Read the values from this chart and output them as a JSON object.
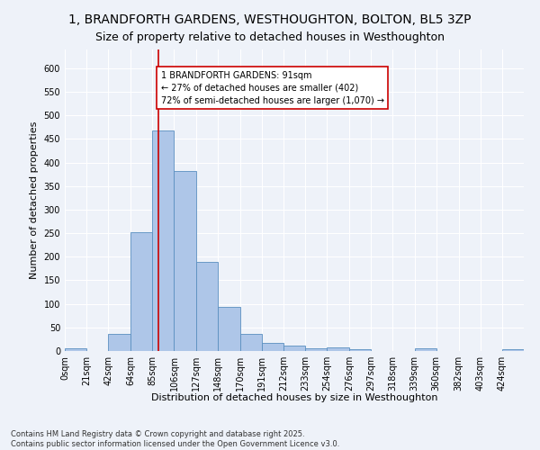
{
  "title1": "1, BRANDFORTH GARDENS, WESTHOUGHTON, BOLTON, BL5 3ZP",
  "title2": "Size of property relative to detached houses in Westhoughton",
  "xlabel": "Distribution of detached houses by size in Westhoughton",
  "ylabel": "Number of detached properties",
  "bin_labels": [
    "0sqm",
    "21sqm",
    "42sqm",
    "64sqm",
    "85sqm",
    "106sqm",
    "127sqm",
    "148sqm",
    "170sqm",
    "191sqm",
    "212sqm",
    "233sqm",
    "254sqm",
    "276sqm",
    "297sqm",
    "318sqm",
    "339sqm",
    "360sqm",
    "382sqm",
    "403sqm",
    "424sqm"
  ],
  "bin_edges": [
    0,
    21,
    42,
    64,
    85,
    106,
    127,
    148,
    170,
    191,
    212,
    233,
    254,
    276,
    297,
    318,
    339,
    360,
    382,
    403,
    424,
    445
  ],
  "bar_values": [
    5,
    0,
    37,
    252,
    468,
    383,
    190,
    93,
    37,
    18,
    12,
    6,
    7,
    4,
    0,
    0,
    6,
    0,
    0,
    0,
    4
  ],
  "bar_color": "#aec6e8",
  "bar_edge_color": "#5a8fc0",
  "property_size": 91,
  "red_line_color": "#cc0000",
  "annotation_text": "1 BRANDFORTH GARDENS: 91sqm\n← 27% of detached houses are smaller (402)\n72% of semi-detached houses are larger (1,070) →",
  "annotation_box_color": "#ffffff",
  "annotation_box_edge": "#cc0000",
  "ylim": [
    0,
    640
  ],
  "yticks": [
    0,
    50,
    100,
    150,
    200,
    250,
    300,
    350,
    400,
    450,
    500,
    550,
    600
  ],
  "footer_line1": "Contains HM Land Registry data © Crown copyright and database right 2025.",
  "footer_line2": "Contains public sector information licensed under the Open Government Licence v3.0.",
  "bg_color": "#eef2f9",
  "grid_color": "#ffffff",
  "title_fontsize": 10,
  "subtitle_fontsize": 9,
  "axis_label_fontsize": 8,
  "tick_fontsize": 7,
  "footer_fontsize": 6,
  "annotation_fontsize": 7
}
